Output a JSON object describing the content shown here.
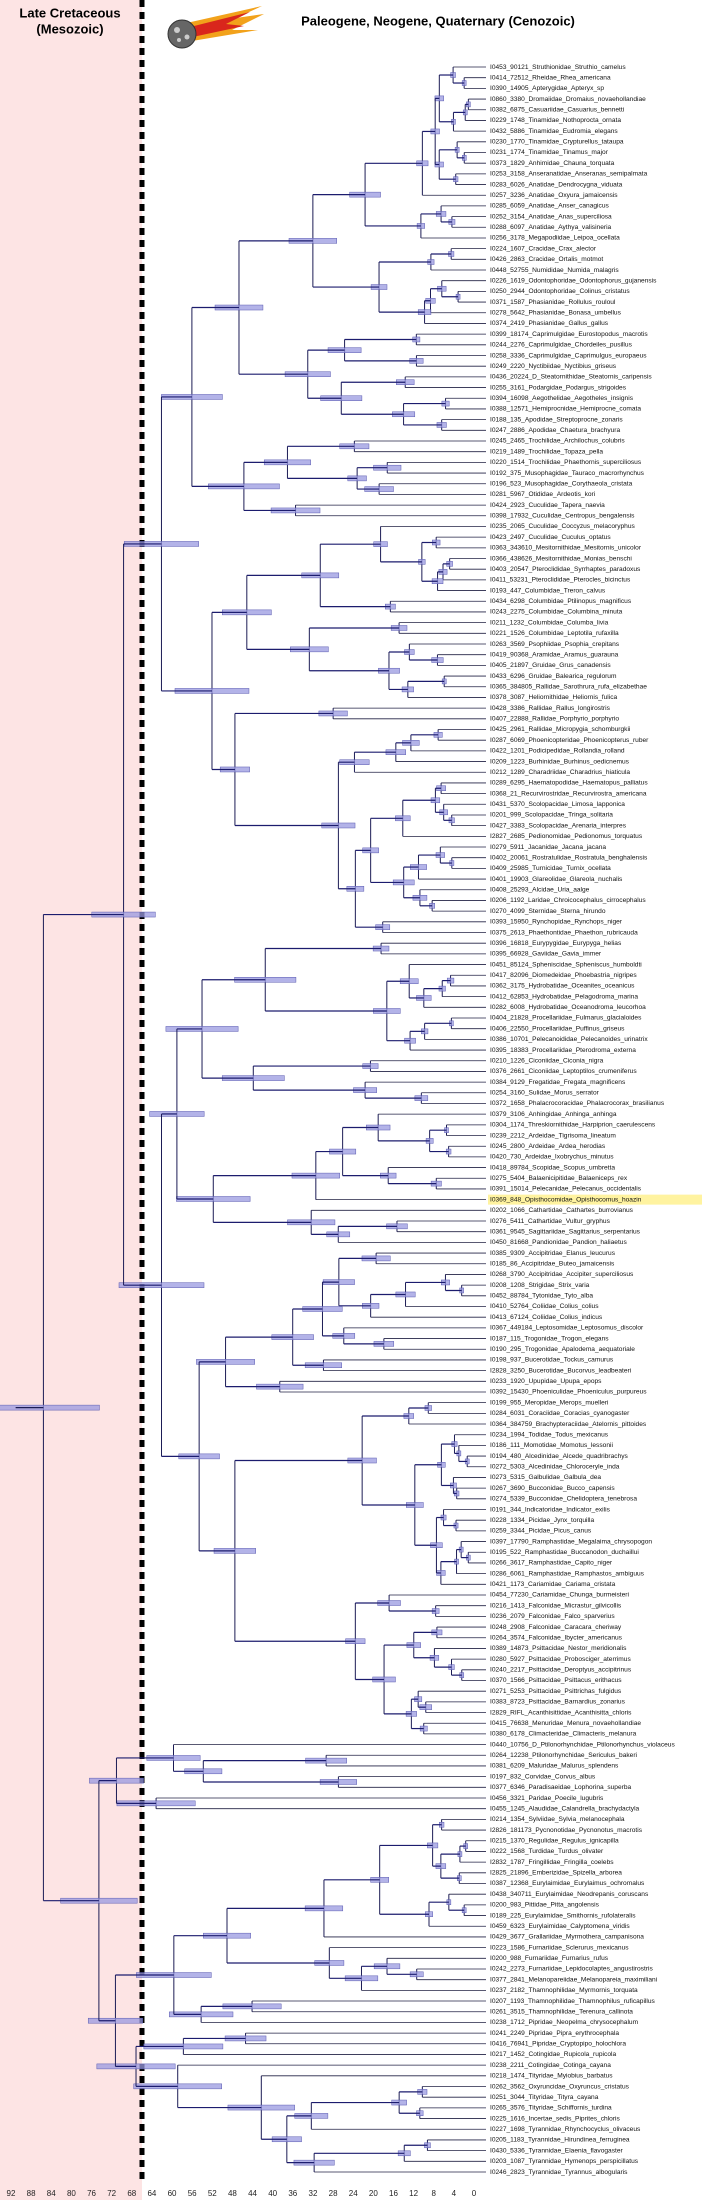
{
  "header": {
    "left": [
      "Late Cretaceous",
      "(Mesozoic)"
    ],
    "right": "Paleogene, Neogene, Quaternary (Cenozoic)"
  },
  "axis_ticks": [
    92,
    88,
    84,
    80,
    76,
    72,
    68,
    64,
    60,
    56,
    52,
    48,
    44,
    40,
    36,
    32,
    28,
    24,
    20,
    16,
    12,
    8,
    4,
    0
  ],
  "highlight": 106,
  "tips": [
    "I0453_90121_Struthionidae_Struthio_camelus",
    "I0414_72512_Rheidae_Rhea_americana",
    "I0390_14905_Apterygidae_Apteryx_sp",
    "I0860_3380_Dromaiidae_Dromaius_novaehollandiae",
    "I0382_6875_Casuariidae_Casuarius_bennetti",
    "I0229_1748_Tinamidae_Nothoprocta_ornata",
    "I0432_5886_Tinamidae_Eudromia_elegans",
    "I0230_1770_Tinamidae_Crypturellus_tataupa",
    "I0231_1774_Tinamidae_Tinamus_major",
    "I0373_1829_Anhimidae_Chauna_torquata",
    "I0253_3158_Anseranatidae_Anseranas_semipalmata",
    "I0283_6026_Anatidae_Dendrocygna_viduata",
    "I0257_3236_Anatidae_Oxyura_jamaicensis",
    "I0285_6059_Anatidae_Anser_canagicus",
    "I0252_3154_Anatidae_Anas_superciliosa",
    "I0288_6097_Anatidae_Aythya_valisineria",
    "I0256_3178_Megapodiidae_Leipoa_ocellata",
    "I0224_1607_Cracidae_Crax_alector",
    "I0426_2863_Cracidae_Ortalis_motmot",
    "I0448_52755_Numididae_Numida_malagris",
    "I0226_1619_Odontophoridae_Odontophorus_gujanensis",
    "I0250_2944_Odontophoridae_Colinus_cristatus",
    "I0371_1587_Phasianidae_Rollulus_rouloul",
    "I0278_5642_Phasianidae_Bonasa_umbellus",
    "I0374_2419_Phasianidae_Gallus_gallus",
    "I0399_18174_Caprimulgidae_Eurostopodus_macrotis",
    "I0244_2276_Caprimulgidae_Chordeiles_pusillus",
    "I0258_3336_Caprimulgidae_Caprimulgus_europaeus",
    "I0249_2220_Nyctibiidae_Nyctibius_griseus",
    "I0436_20224_D_Steatornithidae_Steatornis_caripensis",
    "I0255_3161_Podargidae_Podargus_strigoides",
    "I0394_16098_Aegothelidae_Aegotheles_insignis",
    "I0388_12571_Hemiprocnidae_Hemiprocne_comata",
    "I0188_135_Apodidae_Streptoprocne_zonaris",
    "I0247_2886_Apodidae_Chaetura_brachyura",
    "I0245_2465_Trochilidae_Archilochus_colubris",
    "I0219_1489_Trochilidae_Topaza_pella",
    "I0220_1514_Trochilidae_Phaethornis_superciliosus",
    "I0192_375_Musophagidae_Tauraco_macrorhynchus",
    "I0196_523_Musophagidae_Corythaeola_cristata",
    "I0281_5967_Otididae_Ardeotis_kori",
    "I0424_2923_Cuculidae_Tapera_naevia",
    "I0398_17932_Cuculidae_Centropus_bengalensis",
    "I0235_2065_Cuculidae_Coccyzus_melacoryphus",
    "I0423_2497_Cuculidae_Cuculus_optatus",
    "I0363_343610_Mesitornithidae_Mesitornis_unicolor",
    "I0366_438626_Mesitornithidae_Monias_benschi",
    "I0403_20547_Pteroclididae_Syrrhaptes_paradoxus",
    "I0411_53231_Pteroclididae_Pterocles_bicinctus",
    "I0193_447_Columbidae_Treron_calvus",
    "I0434_6298_Columbidae_Ptilinopus_magnificus",
    "I0243_2275_Columbidae_Columbina_minuta",
    "I0211_1232_Columbidae_Columba_livia",
    "I0221_1526_Columbidae_Leptotila_rufaxilla",
    "I0263_3569_Psophiidae_Psophia_crepitans",
    "I0419_90368_Aramidae_Aramus_guarauna",
    "I0405_21897_Gruidae_Grus_canadensis",
    "I0433_6296_Gruidae_Balearica_regulorum",
    "I0365_384805_Rallidae_Sarothrura_rufa_elizabethae",
    "I0378_3087_Heliornithidae_Heliornis_fulica",
    "I0428_3386_Rallidae_Rallus_longirostris",
    "I0407_22888_Rallidae_Porphyrio_porphyrio",
    "I0425_2961_Rallidae_Micropygia_schomburgkii",
    "I0287_6069_Phoenicopteridae_Phoenicopterus_ruber",
    "I0422_1201_Podicipedidae_Rollandia_rolland",
    "I0209_1223_Burhinidae_Burhinus_oedicnemus",
    "I0212_1289_Charadriidae_Charadrius_hiaticula",
    "I0289_6295_Haematopodidae_Haematopus_palliatus",
    "I0368_21_Recurvirostridae_Recurvirostra_americana",
    "I0431_5370_Scolopacidae_Limosa_lapponica",
    "I0201_999_Scolopacidae_Tringa_solitaria",
    "I0427_3383_Scolopacidae_Arenaria_interpres",
    "I2827_2685_Pedionomidae_Pedionomus_torquatus",
    "I0279_5911_Jacanidae_Jacana_jacana",
    "I0402_20061_Rostratulidae_Rostratula_benghalensis",
    "I0409_25985_Turnicidae_Turnix_ocellata",
    "I0401_19903_Glareolidae_Glareola_nuchalis",
    "I0408_25293_Alcidae_Uria_aalge",
    "I0206_1192_Laridae_Chroicocephalus_cirrocephalus",
    "I0270_4099_Sternidae_Sterna_hirundo",
    "I0393_15950_Rynchopidae_Rynchops_niger",
    "I0375_2613_Phaethontidae_Phaethon_rubricauda",
    "I0396_16818_Eurypygidae_Eurypyga_helias",
    "I0395_66928_Gaviidae_Gavia_immer",
    "I0451_85124_Spheniscidae_Spheniscus_humboldti",
    "I0417_82096_Diomedeidae_Phoebastria_nigripes",
    "I0362_3175_Hydrobatidae_Oceanites_oceanicus",
    "I0412_62853_Hydrobatidae_Pelagodroma_marina",
    "I0282_6008_Hydrobatidae_Oceanodroma_leucorhoa",
    "I0404_21828_Procellariidae_Fulmarus_glacialoides",
    "I0406_22550_Procellariidae_Puffinus_griseus",
    "I0386_10701_Pelecanoididae_Pelecanoides_urinatrix",
    "I0395_18383_Procellariidae_Pterodroma_externa",
    "I0210_1226_Ciconiidae_Ciconia_nigra",
    "I0376_2661_Ciconiidae_Leptoptilos_crumeniferus",
    "I0384_9129_Fregatidae_Fregata_magnificens",
    "I0254_3160_Sulidae_Morus_serrator",
    "I0372_1658_Phalacrocoracidae_Phalacrocorax_brasilianus",
    "I0379_3106_Anhingidae_Anhinga_anhinga",
    "I0304_1174_Threskiornithidae_Harpiprion_caerulescens",
    "I0239_2212_Ardeidae_Tigrisoma_lineatum",
    "I0245_2800_Ardeidae_Ardea_herodias",
    "I0420_730_Ardeidae_Ixobrychus_minutus",
    "I0418_89784_Scopidae_Scopus_umbretta",
    "I0275_5404_Balaenicipitidae_Balaeniceps_rex",
    "I0391_15014_Pelecanidae_Pelecanus_occidentalis",
    "I0369_848_Opisthocomidae_Opisthocomus_hoazin",
    "I0202_1066_Cathartidae_Cathartes_burrovianus",
    "I0276_5411_Cathartidae_Vultur_gryphus",
    "I0361_9545_Sagittariidae_Sagittarius_serpentarius",
    "I0450_81668_Pandionidae_Pandion_haliaetus",
    "I0385_9309_Accipitridae_Elanus_leucurus",
    "I0185_86_Accipitridae_Buteo_jamaicensis",
    "I0268_3790_Accipitridae_Accipiter_superciliosus",
    "I0208_1208_Strigidae_Strix_varia",
    "I0452_88784_Tytonidae_Tyto_alba",
    "I0410_52764_Coliidae_Colius_colius",
    "I0413_67124_Coliidae_Colius_indicus",
    "I0367_449184_Leptosomidae_Leptosomus_discolor",
    "I0187_115_Trogonidae_Trogon_elegans",
    "I0190_295_Trogonidae_Apalodema_aequatoriale",
    "I0198_937_Bucerotidae_Tockus_camurus",
    "I2828_3250_Bucerotidae_Bucorvus_leadbeateri",
    "I0233_1920_Upupidae_Upupa_epops",
    "I0392_15430_Phoeniculidae_Phoeniculus_purpureus",
    "I0199_955_Meropidae_Merops_muelleri",
    "I0284_6031_Coraciidae_Coracias_cyanogaster",
    "I0364_384759_Brachypteraciidae_Atelornis_pittoides",
    "I0234_1994_Todidae_Todus_mexicanus",
    "I0186_111_Momotidae_Momotus_lessonii",
    "I0194_480_Alcedinidae_Alcede_quadribrachys",
    "I0272_5303_Alcedinidae_Chloroceryle_inda",
    "I0273_5315_Galbulidae_Galbula_dea",
    "I0267_3690_Bucconidae_Bucco_capensis",
    "I0274_5339_Bucconidae_Chelidoptera_tenebrosa",
    "I0191_344_Indicatoridae_Indicator_exilis",
    "I0228_1334_Picidae_Jynx_torquilla",
    "I0259_3344_Picidae_Picus_canus",
    "I0397_17790_Ramphastidae_Megalaima_chrysopogon",
    "I0195_522_Ramphastidae_Buccanodon_duchaillui",
    "I0266_3617_Ramphastidae_Capito_niger",
    "I0286_6061_Ramphastidae_Ramphastos_ambiguus",
    "I0421_1173_Cariamidae_Cariama_cristata",
    "I0454_77230_Cariamidae_Chunga_burmeisteri",
    "I0216_1413_Falconidae_Micrastur_gilvicollis",
    "I0236_2079_Falconidae_Falco_sparverius",
    "I0248_2908_Falconidae_Caracara_cheriway",
    "I0264_3574_Falconidae_Ibycter_americanus",
    "I0389_14873_Psittacidae_Nestor_meridionalis",
    "I0280_5927_Psittacidae_Probosciger_aterrimus",
    "I0240_2217_Psittacidae_Deroptyus_accipitrinus",
    "I0370_1566_Psittacidae_Psittacus_erithacus",
    "I0271_5253_Psittacidae_Psittrichas_fulgidus",
    "I0383_8723_Psittacidae_Barnardius_zonarius",
    "I2829_RIFL_Acanthisittidae_Acanthisitta_chloris",
    "I0415_76638_Menuridae_Menura_novaehollandiae",
    "I0380_6178_Climacteridae_Climacteris_melanura",
    "I0440_10756_D_Ptilonorhynchidae_Ptilonorhynchus_violaceus",
    "I0264_12238_Ptilonorhynchidae_Sericulus_bakeri",
    "I0381_6209_Maluridae_Malurus_splendens",
    "I0197_832_Corvidae_Corvus_albus",
    "I0377_6346_Paradisaeidae_Lophorina_superba",
    "I0456_3321_Paridae_Poecile_lugubris",
    "I0455_1245_Alaudidae_Calandrella_brachydactyla",
    "I0214_1354_Sylviidae_Sylvia_melanocephala",
    "I2826_181173_Pycnonotidae_Pycnonotus_macrotis",
    "I0215_1370_Regulidae_Regulus_ignicapilla",
    "I0222_1568_Turdidae_Turdus_olivater",
    "I2832_1787_Fringillidae_Fringilla_coelebs",
    "I2825_21896_Emberizidae_Spizella_arborea",
    "I0387_12368_Eurylaimidae_Eurylaimus_ochromalus",
    "I0438_340711_Eurylaimidae_Neodrepanis_coruscans",
    "I0200_983_Pittidae_Pitta_angolensis",
    "I0189_225_Eurylaimidae_Smithornis_rufolateralis",
    "I0459_6323_Eurylaimidae_Calyptomena_viridis",
    "I0429_3677_Grallariidae_Myrmothera_campanisona",
    "I0223_1586_Furnariidae_Sclerurus_mexicanus",
    "I0200_988_Furnariidae_Furnarius_rufus",
    "I0242_2273_Furnariidae_Lepidocolaptes_angustirostris",
    "I0377_2841_Melanopareiidae_Melanopareia_maximiliani",
    "I0237_2182_Thamnophilidae_Myrmornis_torquata",
    "I0207_1193_Thamnophilidae_Thamnophilus_ruficapillus",
    "I0261_3515_Thamnophilidae_Terenura_callinota",
    "I0238_1712_Pipridae_Neopelma_chrysocephalum",
    "I0241_2249_Pipridae_Pipra_erythrocephala",
    "I0416_76941_Pipridae_Cryptopipo_holochlora",
    "I0217_1452_Cotingidae_Rupicola_rupicola",
    "I0238_2211_Cotingidae_Cotinga_cayana",
    "I0218_1474_Tityridae_Myiobius_barbatus",
    "I0262_3562_Oxyruncidae_Oxyruncus_cristatus",
    "I0251_3044_Tityridae_Tityra_cayana",
    "I0265_3576_Tityridae_Schiffornis_turdina",
    "I0225_1616_Incertae_sedis_Piprites_chloris",
    "I0227_1698_Tyrannidae_Rhynchocyclus_olivaceus",
    "I0205_1183_Tyrannidae_Hirundinea_ferruginea",
    "I0430_5336_Tyrannidae_Elaenia_flavogaster",
    "I0203_1087_Tyrannidae_Hymenops_perspicillatus",
    "I0246_2823_Tyrannidae_Tyrannus_albogularis"
  ]
}
